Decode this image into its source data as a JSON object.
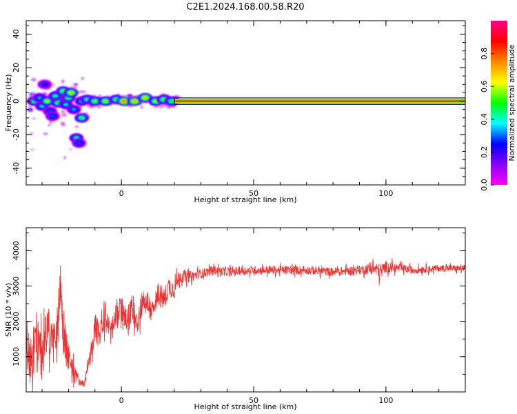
{
  "figure": {
    "title": "C2E1.2024.168.00.58.R20"
  },
  "chart_data": [
    {
      "type": "heatmap",
      "xlabel": "Height of straight line (km)",
      "ylabel": "Frequency (Hz)",
      "xlim": [
        -36,
        130
      ],
      "ylim": [
        -50,
        48
      ],
      "xticks": [
        0,
        50,
        100
      ],
      "yticks": [
        -40,
        -20,
        0,
        20,
        40
      ],
      "grid": false,
      "colorbar": {
        "label": "Normalized spectral amplitude",
        "range": [
          0,
          1
        ],
        "ticks": [
          0.0,
          0.2,
          0.4,
          0.6,
          0.8
        ],
        "colors": [
          "#ff00ff",
          "#8800ff",
          "#0000ff",
          "#00ffff",
          "#00ff00",
          "#ffff00",
          "#ff8800",
          "#ff0000",
          "#ff0088"
        ]
      },
      "ridge": {
        "x_start": 20,
        "x_end": 130,
        "freq": 0,
        "half_width_hz": 1.5
      },
      "blobs": [
        {
          "x": -33,
          "f": 0,
          "amp": 0.5
        },
        {
          "x": -31,
          "f": 2,
          "amp": 0.35
        },
        {
          "x": -30,
          "f": -3,
          "amp": 0.4
        },
        {
          "x": -29,
          "f": 10,
          "amp": 0.25
        },
        {
          "x": -28,
          "f": 0,
          "amp": 0.6
        },
        {
          "x": -27,
          "f": -6,
          "amp": 0.3
        },
        {
          "x": -26,
          "f": -9,
          "amp": 0.3
        },
        {
          "x": -25,
          "f": 3,
          "amp": 0.45
        },
        {
          "x": -24,
          "f": -1,
          "amp": 0.5
        },
        {
          "x": -22,
          "f": 6,
          "amp": 0.55
        },
        {
          "x": -21,
          "f": -2,
          "amp": 0.4
        },
        {
          "x": -20,
          "f": 2,
          "amp": 0.5
        },
        {
          "x": -19,
          "f": 5,
          "amp": 0.65
        },
        {
          "x": -18,
          "f": -5,
          "amp": 0.35
        },
        {
          "x": -17,
          "f": -22,
          "amp": 0.45
        },
        {
          "x": -16,
          "f": -25,
          "amp": 0.3
        },
        {
          "x": -15,
          "f": 0,
          "amp": 0.4
        },
        {
          "x": -15,
          "f": -10,
          "amp": 0.5
        },
        {
          "x": -13,
          "f": 1,
          "amp": 0.45
        },
        {
          "x": -10,
          "f": 0,
          "amp": 0.55
        },
        {
          "x": -6,
          "f": 0,
          "amp": 0.6
        },
        {
          "x": -2,
          "f": 1,
          "amp": 0.5
        },
        {
          "x": 1,
          "f": 0,
          "amp": 0.8
        },
        {
          "x": 5,
          "f": 0,
          "amp": 0.75
        },
        {
          "x": 9,
          "f": 2,
          "amp": 0.7
        },
        {
          "x": 13,
          "f": 0,
          "amp": 0.6
        },
        {
          "x": 16,
          "f": 1,
          "amp": 0.55
        },
        {
          "x": 19,
          "f": 0,
          "amp": 0.5
        }
      ]
    },
    {
      "type": "line",
      "xlabel": "Height of straight line (km)",
      "ylabel": "SNR (10 * v/v)",
      "xlim": [
        -36,
        130
      ],
      "ylim": [
        0,
        4650
      ],
      "xticks": [
        0,
        50,
        100
      ],
      "yticks": [
        1000,
        2000,
        3000,
        4000
      ],
      "grid": false,
      "series": [
        {
          "color": "#ee3333",
          "x": [
            -36,
            -34,
            -32,
            -30,
            -28,
            -26,
            -24,
            -23,
            -22,
            -20,
            -18,
            -16,
            -14,
            -12,
            -10,
            -8,
            -6,
            -4,
            -2,
            0,
            2,
            4,
            6,
            8,
            10,
            12,
            14,
            16,
            18,
            20,
            22,
            25,
            30,
            35,
            40,
            50,
            60,
            70,
            80,
            90,
            95,
            98,
            100,
            105,
            110,
            120,
            130
          ],
          "y": [
            1500,
            800,
            1600,
            1000,
            1900,
            1300,
            2100,
            3200,
            1500,
            1000,
            600,
            300,
            220,
            900,
            1800,
            1600,
            2200,
            1700,
            2100,
            2400,
            1900,
            2400,
            2000,
            2600,
            2500,
            2200,
            2800,
            2600,
            3000,
            2900,
            3300,
            3250,
            3350,
            3450,
            3400,
            3450,
            3450,
            3450,
            3400,
            3450,
            3500,
            3400,
            3550,
            3500,
            3450,
            3500,
            3500
          ],
          "noise": [
            1400,
            1400,
            1300,
            1300,
            1200,
            1200,
            1100,
            1300,
            1100,
            700,
            500,
            200,
            150,
            500,
            700,
            700,
            700,
            700,
            700,
            700,
            700,
            700,
            700,
            700,
            700,
            650,
            650,
            600,
            550,
            500,
            400,
            300,
            250,
            230,
            220,
            220,
            220,
            220,
            220,
            230,
            330,
            450,
            300,
            220,
            200,
            180,
            180
          ]
        }
      ]
    }
  ]
}
